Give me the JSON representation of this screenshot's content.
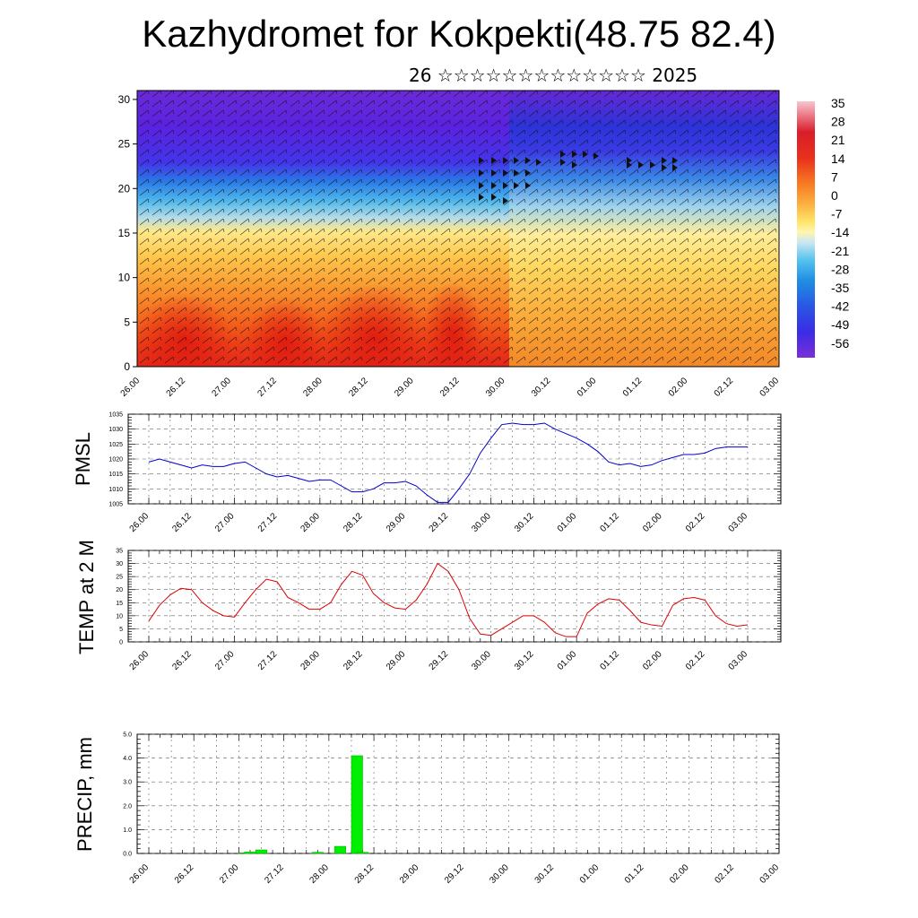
{
  "header": {
    "title": "Kazhydromet for Kokpekti(48.75 82.4)",
    "subtitle": "26 ☆☆☆☆☆☆☆☆☆☆☆☆☆ 2025"
  },
  "time_labels": [
    "26.00",
    "26.12",
    "27.00",
    "27.12",
    "28.00",
    "28.12",
    "29.00",
    "29.12",
    "30.00",
    "30.12",
    "01.00",
    "01.12",
    "02.00",
    "02.12",
    "03.00"
  ],
  "chart_data": [
    {
      "type": "heatmap",
      "name": "vertical-section",
      "y_ticks": [
        "0",
        "5",
        "10",
        "15",
        "20",
        "25",
        "30"
      ],
      "ylim": [
        0,
        31
      ],
      "colorbar": {
        "labels": [
          "35",
          "28",
          "21",
          "14",
          "7",
          "0",
          "-7",
          "-14",
          "-21",
          "-28",
          "-35",
          "-42",
          "-49",
          "-56"
        ],
        "range": [
          -60,
          38
        ]
      }
    },
    {
      "type": "line",
      "name": "pmsl",
      "ylabel": "PMSL",
      "color": "#0000cc",
      "ylim": [
        1005,
        1035
      ],
      "y_ticks": [
        "1005",
        "1010",
        "1015",
        "1020",
        "1025",
        "1030",
        "1035"
      ],
      "x_step": 3,
      "values": [
        1019,
        1020,
        1019,
        1018,
        1017,
        1018,
        1017.5,
        1017.5,
        1018.5,
        1019,
        1017,
        1015,
        1014,
        1014.5,
        1013.5,
        1012.5,
        1013,
        1013,
        1011,
        1009,
        1009,
        1010,
        1012,
        1012,
        1012.5,
        1011,
        1008,
        1005.5,
        1005.5,
        1010,
        1015,
        1022,
        1027,
        1031.5,
        1032,
        1031.5,
        1031.5,
        1032,
        1030,
        1028.5,
        1027,
        1025,
        1022.5,
        1019,
        1018,
        1018.5,
        1017.5,
        1018,
        1019.5,
        1020.5,
        1021.5,
        1021.5,
        1022,
        1023.5,
        1024,
        1024,
        1024
      ]
    },
    {
      "type": "line",
      "name": "temp",
      "ylabel": "TEMP at 2 M",
      "color": "#dd0000",
      "ylim": [
        0,
        35
      ],
      "y_ticks": [
        "0",
        "5",
        "10",
        "15",
        "20",
        "25",
        "30",
        "35"
      ],
      "x_step": 3,
      "values": [
        8,
        14,
        18,
        20.5,
        20,
        15,
        12,
        10,
        9.5,
        15,
        20,
        24,
        23,
        17,
        15,
        12.5,
        12.5,
        15,
        22,
        27,
        25.5,
        18.5,
        15,
        13,
        12.5,
        16,
        22,
        30,
        27,
        20,
        9,
        3,
        2.5,
        5,
        7.5,
        10,
        10,
        7.5,
        3.5,
        2,
        2,
        11,
        14.5,
        16.5,
        16,
        12,
        7.5,
        6.5,
        6,
        14,
        16.5,
        17,
        16,
        10,
        7,
        6,
        6.5
      ]
    },
    {
      "type": "bar",
      "name": "precip",
      "ylabel": "PRECIP, mm",
      "color": "#00ee00",
      "ylim": [
        0,
        5
      ],
      "y_ticks": [
        "0.0",
        "1.0",
        "2.0",
        "3.0",
        "4.0",
        "5.0"
      ],
      "bars": [
        {
          "t": 25.5,
          "v": 0.03
        },
        {
          "t": 27,
          "v": 0.06
        },
        {
          "t": 30,
          "v": 0.15
        },
        {
          "t": 45,
          "v": 0.05
        },
        {
          "t": 51,
          "v": 0.3
        },
        {
          "t": 55.5,
          "v": 4.1
        },
        {
          "t": 57,
          "v": 0.05
        }
      ]
    }
  ]
}
